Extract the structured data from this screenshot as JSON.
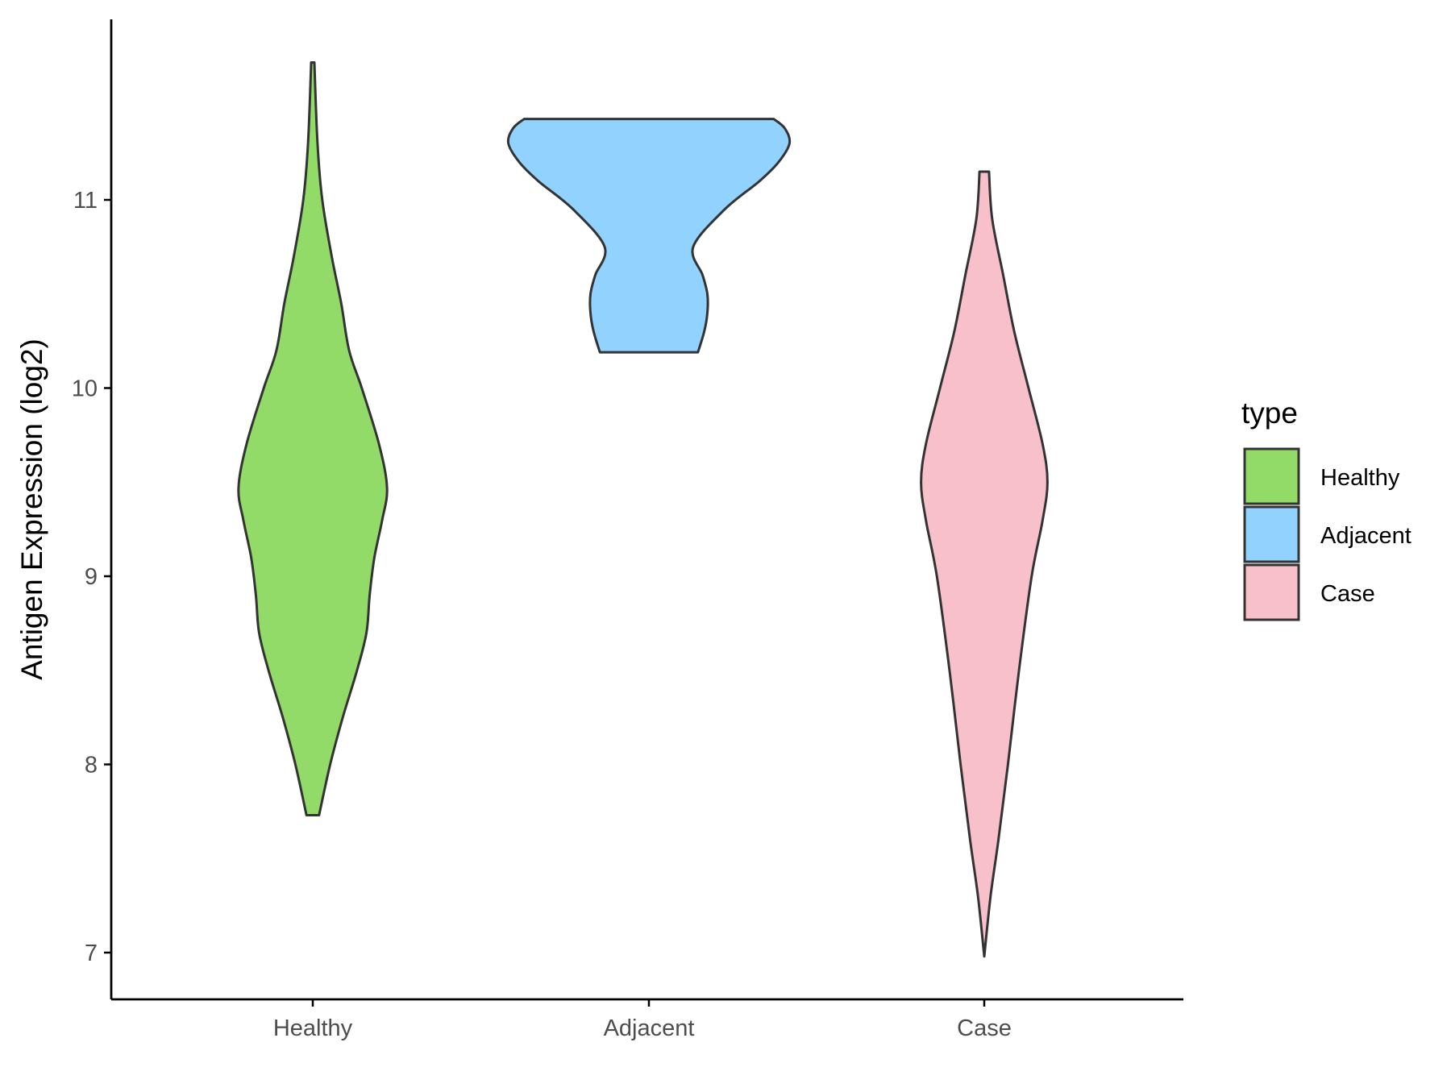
{
  "chart_data": {
    "type": "violin",
    "title": "",
    "xlabel": "",
    "ylabel": "Antigen Expression (log2)",
    "ylim": [
      6.75,
      12.0
    ],
    "yticks": [
      7,
      8,
      9,
      10,
      11
    ],
    "categories": [
      "Healthy",
      "Adjacent",
      "Case"
    ],
    "legend": {
      "title": "type",
      "position": "right",
      "entries": [
        "Healthy",
        "Adjacent",
        "Case"
      ]
    },
    "series": [
      {
        "name": "Healthy",
        "color": "#93DB69",
        "range": [
          7.73,
          11.73
        ],
        "density": [
          [
            7.73,
            0.04
          ],
          [
            8.0,
            0.11
          ],
          [
            8.25,
            0.19
          ],
          [
            8.5,
            0.28
          ],
          [
            8.7,
            0.34
          ],
          [
            8.9,
            0.36
          ],
          [
            9.1,
            0.39
          ],
          [
            9.3,
            0.44
          ],
          [
            9.47,
            0.47
          ],
          [
            9.7,
            0.42
          ],
          [
            10.0,
            0.31
          ],
          [
            10.2,
            0.23
          ],
          [
            10.45,
            0.18
          ],
          [
            10.7,
            0.12
          ],
          [
            11.0,
            0.06
          ],
          [
            11.3,
            0.03
          ],
          [
            11.73,
            0.01
          ]
        ]
      },
      {
        "name": "Adjacent",
        "color": "#92D2FF",
        "range": [
          10.19,
          11.43
        ],
        "density": [
          [
            10.19,
            0.31
          ],
          [
            10.3,
            0.35
          ],
          [
            10.4,
            0.37
          ],
          [
            10.5,
            0.37
          ],
          [
            10.6,
            0.34
          ],
          [
            10.75,
            0.28
          ],
          [
            10.95,
            0.48
          ],
          [
            11.1,
            0.7
          ],
          [
            11.2,
            0.82
          ],
          [
            11.3,
            0.89
          ],
          [
            11.38,
            0.86
          ],
          [
            11.43,
            0.79
          ]
        ]
      },
      {
        "name": "Case",
        "color": "#F7C0CB",
        "range": [
          6.98,
          11.15
        ],
        "density": [
          [
            6.98,
            0.0
          ],
          [
            7.3,
            0.04
          ],
          [
            7.6,
            0.09
          ],
          [
            8.0,
            0.15
          ],
          [
            8.5,
            0.22
          ],
          [
            9.0,
            0.3
          ],
          [
            9.3,
            0.37
          ],
          [
            9.5,
            0.4
          ],
          [
            9.7,
            0.37
          ],
          [
            10.0,
            0.28
          ],
          [
            10.3,
            0.19
          ],
          [
            10.6,
            0.12
          ],
          [
            10.9,
            0.05
          ],
          [
            11.15,
            0.03
          ]
        ]
      }
    ]
  }
}
